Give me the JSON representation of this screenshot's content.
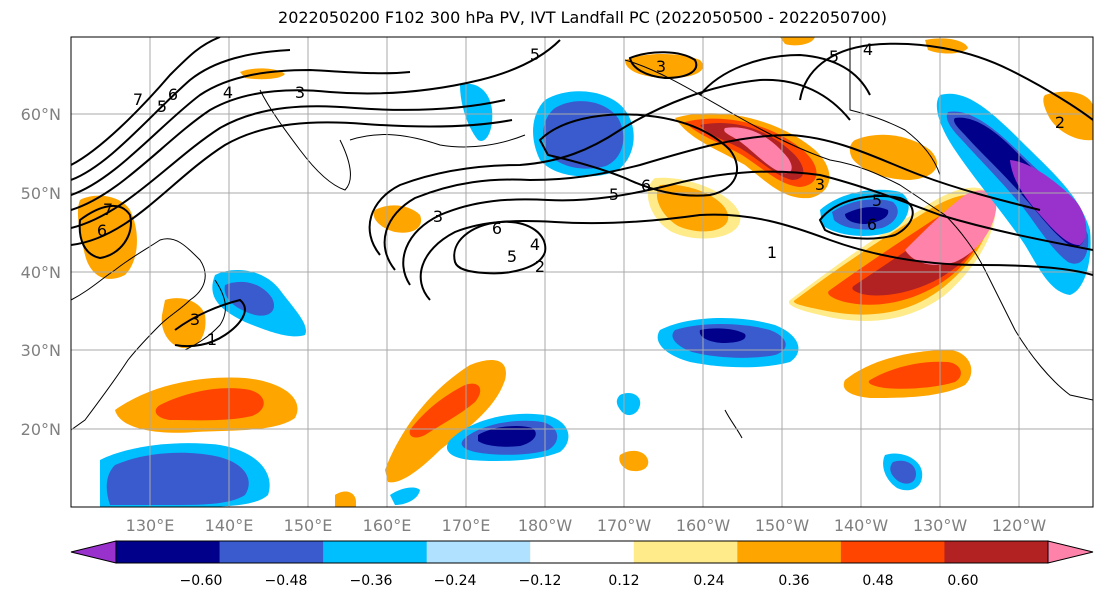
{
  "title": "2022050200 F102 300 hPa PV, IVT Landfall PC (2022050500 - 2022050700)",
  "map": {
    "lon_labels": [
      "130°E",
      "140°E",
      "150°E",
      "160°E",
      "170°E",
      "180°W",
      "170°W",
      "160°W",
      "150°W",
      "140°W",
      "130°W",
      "120°W"
    ],
    "lat_labels": [
      "60°N",
      "50°N",
      "40°N",
      "30°N",
      "20°N"
    ],
    "grid": true,
    "contour_labels": [
      "7",
      "6",
      "5",
      "4",
      "3",
      "3",
      "5",
      "6",
      "5",
      "6",
      "3",
      "5",
      "4",
      "5",
      "4",
      "2",
      "1",
      "3",
      "5",
      "6",
      "2",
      "3",
      "1",
      "7",
      "6"
    ]
  },
  "colorbar": {
    "tick_labels": [
      "−0.60",
      "−0.48",
      "−0.36",
      "−0.24",
      "−0.12",
      "0.12",
      "0.24",
      "0.36",
      "0.48",
      "0.60"
    ],
    "colors": [
      "#9932cc",
      "#00008b",
      "#3a5bcd",
      "#00bfff",
      "#b0e2ff",
      "#ffffff",
      "#ffeb8a",
      "#ffa500",
      "#ff4500",
      "#b22222",
      "#ff82ab"
    ]
  }
}
